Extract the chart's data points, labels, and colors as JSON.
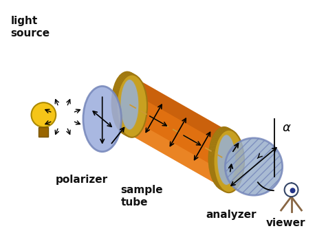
{
  "background_color": "#ffffff",
  "labels": {
    "light_source": "light\nsource",
    "polarizer": "polarizer",
    "sample_tube": "sample\ntube",
    "analyzer": "analyzer",
    "viewer": "viewer",
    "alpha": "α"
  },
  "colors": {
    "bulb_yellow": "#f5c518",
    "bulb_base": "#996600",
    "polarizer_fill": "#9daedd",
    "polarizer_edge": "#7788bb",
    "tube_orange": "#e07010",
    "tube_light_orange": "#f09030",
    "tube_dark": "#b05008",
    "tube_gold": "#c8a020",
    "tube_gold_dark": "#a07810",
    "tube_end_fill": "#9ab0cc",
    "tube_end_edge": "#c8a020",
    "analyzer_fill": "#9ab0cc",
    "analyzer_edge": "#7788bb",
    "dashed_color": "#cc9933",
    "text_color": "#111111",
    "arrow_color": "#111111"
  },
  "figsize": [
    4.74,
    3.55
  ],
  "dpi": 100
}
